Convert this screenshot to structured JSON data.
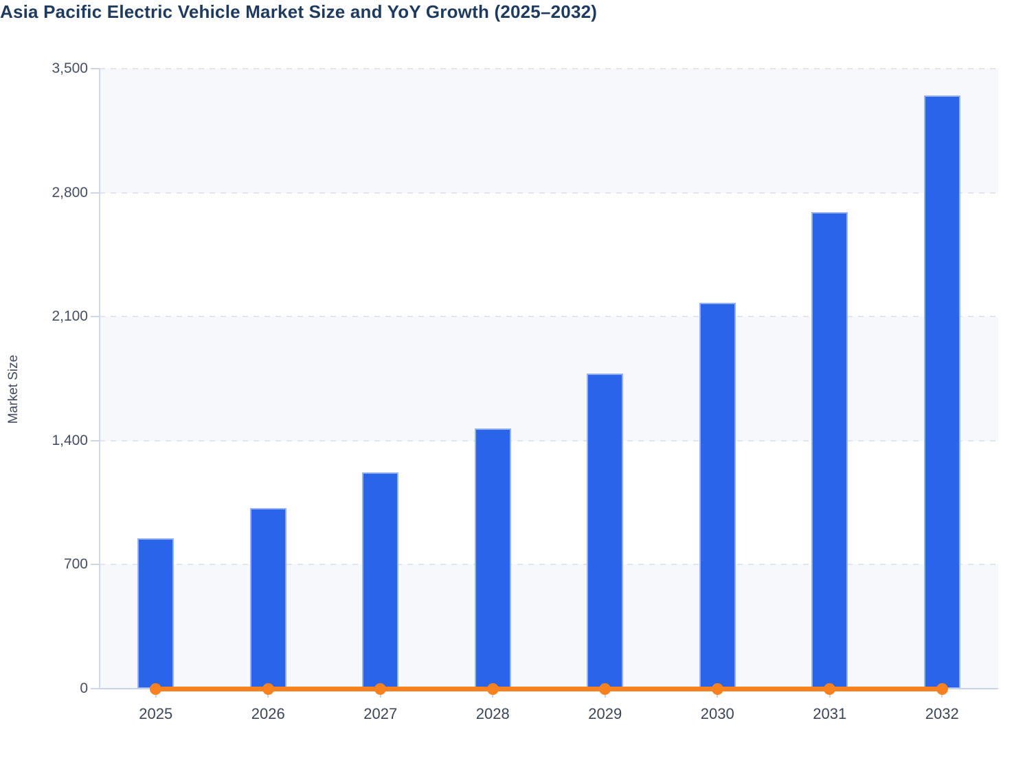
{
  "title": "Asia Pacific Electric Vehicle Market Size and YoY Growth (2025–2032)",
  "colors": {
    "background": "#ffffff",
    "title": "#1e3a5e",
    "bar": "#2a64e8",
    "line": "#f9811e",
    "band": "#f7f8fb",
    "gridline": "#e2e5ec",
    "axis_line": "#c9d2e8",
    "tick_label": "#454e62",
    "x_label": "#3b4557",
    "axis_title": "#3f4a5e"
  },
  "chart_data": {
    "type": "bar",
    "title": "Asia Pacific Electric Vehicle Market Size and YoY Growth (2025–2032)",
    "categories": [
      "2025",
      "2026",
      "2027",
      "2028",
      "2029",
      "2030",
      "2031",
      "2032"
    ],
    "series": [
      {
        "name": "Market Size",
        "type": "bar",
        "values": [
          850,
          1020,
          1220,
          1470,
          1780,
          2180,
          2690,
          3350
        ]
      },
      {
        "name": "YoY Growth",
        "type": "line",
        "values": [
          0,
          20,
          19.6,
          20.5,
          21.1,
          22.5,
          23.4,
          24.5
        ],
        "note": "plotted on the same 0–3,500 axis, so the line renders flat along the zero baseline with a marker dot at every year"
      }
    ],
    "xlabel": "",
    "ylabel": "Market Size",
    "ylim": [
      0,
      3500
    ],
    "yticks": [
      0,
      700,
      1400,
      2100,
      2800,
      3500
    ],
    "ytick_labels": [
      "0",
      "700",
      "1,400",
      "2,100",
      "2,800",
      "3,500"
    ],
    "grid": "dashed horizontal gridlines, alternating light band fill between gridlines",
    "legend": "none"
  }
}
